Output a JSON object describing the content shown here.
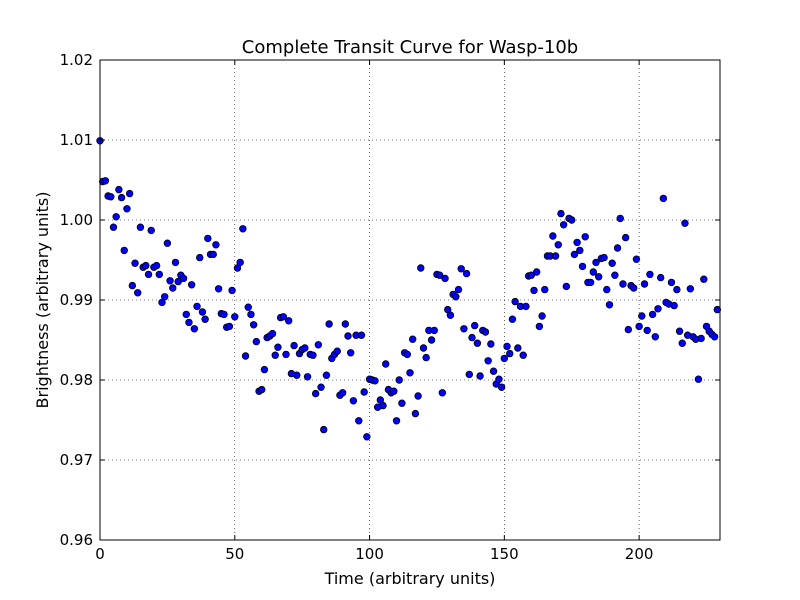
{
  "chart_data": {
    "type": "scatter",
    "title": "Complete Transit Curve for Wasp-10b",
    "xlabel": "Time (arbitrary units)",
    "ylabel": "Brightness (arbitrary units)",
    "xlim": [
      0,
      230
    ],
    "ylim": [
      0.96,
      1.02
    ],
    "xticks": [
      0,
      50,
      100,
      150,
      200
    ],
    "xtick_labels": [
      "0",
      "50",
      "100",
      "150",
      "200"
    ],
    "yticks": [
      0.96,
      0.97,
      0.98,
      0.99,
      1.0,
      1.01,
      1.02
    ],
    "ytick_labels": [
      "0.96",
      "0.97",
      "0.98",
      "0.99",
      "1.00",
      "1.01",
      "1.02"
    ],
    "grid": true,
    "marker_color": "#0000ff",
    "series": [
      {
        "x": [
          0,
          1,
          2,
          3,
          4,
          5,
          6,
          7,
          8,
          9,
          10,
          11,
          12,
          13,
          14,
          15,
          16,
          17,
          18,
          19,
          20,
          21,
          22,
          23,
          24,
          25,
          26,
          27,
          28,
          29,
          30,
          31,
          32,
          33,
          34,
          35,
          36,
          37,
          38,
          39,
          40,
          41,
          42,
          43,
          44,
          45,
          46,
          47,
          48,
          49,
          50,
          51,
          52,
          53,
          54,
          55,
          56,
          57,
          58,
          59,
          60,
          61,
          62,
          63,
          64,
          65,
          66,
          67,
          68,
          69,
          70,
          71,
          72,
          73,
          74,
          75,
          76,
          77,
          78,
          79,
          80,
          81,
          82,
          83,
          84,
          85,
          86,
          87,
          88,
          89,
          90,
          91,
          92,
          93,
          94,
          95,
          96,
          97,
          98,
          99,
          100,
          101,
          102,
          103,
          104,
          105,
          106,
          107,
          108,
          109,
          110,
          111,
          112,
          113,
          114,
          115,
          116,
          117,
          118,
          119,
          120,
          121,
          122,
          123,
          124,
          125,
          126,
          127,
          128,
          129,
          130,
          131,
          132,
          133,
          134,
          135,
          136,
          137,
          138,
          139,
          140,
          141,
          142,
          143,
          144,
          145,
          146,
          147,
          148,
          149,
          150,
          151,
          152,
          153,
          154,
          155,
          156,
          157,
          158,
          159,
          160,
          161,
          162,
          163,
          164,
          165,
          166,
          167,
          168,
          169,
          170,
          171,
          172,
          173,
          174,
          175,
          176,
          177,
          178,
          179,
          180,
          181,
          182,
          183,
          184,
          185,
          186,
          187,
          188,
          189,
          190,
          191,
          192,
          193,
          194,
          195,
          196,
          197,
          198,
          199,
          200,
          201,
          202,
          203,
          204,
          205,
          206,
          207,
          208,
          209,
          210,
          211,
          212,
          213,
          214,
          215,
          216,
          217,
          218,
          219,
          220,
          221,
          222,
          223,
          224,
          225,
          226,
          227,
          228,
          229
        ],
        "y": [
          1.0099,
          1.0048,
          1.0049,
          1.003,
          1.0029,
          0.9991,
          1.0004,
          1.0038,
          1.0028,
          0.9962,
          1.0014,
          1.0033,
          0.9918,
          0.9946,
          0.9909,
          0.9991,
          0.9941,
          0.9943,
          0.9932,
          0.9987,
          0.9941,
          0.9943,
          0.9932,
          0.9897,
          0.9904,
          0.9971,
          0.9924,
          0.9915,
          0.9947,
          0.9923,
          0.9931,
          0.9927,
          0.9882,
          0.9872,
          0.9919,
          0.9864,
          0.9892,
          0.9953,
          0.9885,
          0.9876,
          0.9977,
          0.9957,
          0.9957,
          0.9969,
          0.9914,
          0.9883,
          0.9882,
          0.9866,
          0.9867,
          0.9912,
          0.9879,
          0.994,
          0.9947,
          0.9989,
          0.983,
          0.9891,
          0.9882,
          0.9869,
          0.9848,
          0.9786,
          0.9788,
          0.9813,
          0.9853,
          0.9855,
          0.9858,
          0.9831,
          0.9841,
          0.9878,
          0.9879,
          0.9832,
          0.9874,
          0.9808,
          0.9843,
          0.9806,
          0.9833,
          0.9838,
          0.984,
          0.9804,
          0.9832,
          0.9831,
          0.9783,
          0.9844,
          0.9791,
          0.9738,
          0.9806,
          0.987,
          0.9827,
          0.9832,
          0.9836,
          0.9781,
          0.9784,
          0.987,
          0.9855,
          0.9834,
          0.9774,
          0.9856,
          0.9749,
          0.9856,
          0.9785,
          0.9729,
          0.9801,
          0.98,
          0.9799,
          0.9766,
          0.9775,
          0.9768,
          0.982,
          0.9788,
          0.9784,
          0.9786,
          0.9749,
          0.98,
          0.9771,
          0.9834,
          0.9832,
          0.9809,
          0.9851,
          0.9758,
          0.978,
          0.994,
          0.984,
          0.9828,
          0.9862,
          0.985,
          0.9862,
          0.9932,
          0.9931,
          0.9784,
          0.9927,
          0.9888,
          0.9881,
          0.9907,
          0.9904,
          0.9913,
          0.9939,
          0.9864,
          0.9933,
          0.9807,
          0.9853,
          0.9868,
          0.9846,
          0.9805,
          0.9862,
          0.986,
          0.9824,
          0.9845,
          0.9811,
          0.9795,
          0.9801,
          0.9791,
          0.9827,
          0.9842,
          0.9833,
          0.9876,
          0.9898,
          0.984,
          0.9892,
          0.9831,
          0.9892,
          0.993,
          0.9931,
          0.9912,
          0.9935,
          0.9867,
          0.988,
          0.9913,
          0.9955,
          0.9955,
          0.998,
          0.9955,
          0.9969,
          1.0008,
          0.9994,
          0.9917,
          1.0002,
          1.0,
          0.9957,
          0.9972,
          0.9962,
          0.9942,
          0.9979,
          0.9922,
          0.9922,
          0.9935,
          0.9947,
          0.9929,
          0.9952,
          0.9953,
          0.9913,
          0.9894,
          0.9946,
          0.9931,
          0.9965,
          1.0002,
          0.992,
          0.9978,
          0.9863,
          0.9918,
          0.9915,
          0.9951,
          0.9867,
          0.988,
          0.992,
          0.9862,
          0.9932,
          0.9882,
          0.9854,
          0.9889,
          0.9928,
          1.0027,
          0.9897,
          0.9895,
          0.9922,
          0.9893,
          0.9913,
          0.9861,
          0.9846,
          0.9996,
          0.9856,
          0.9914,
          0.9854,
          0.9851,
          0.9801,
          0.9852,
          0.9926,
          0.9867,
          0.9861,
          0.9857,
          0.9854,
          0.9888
        ]
      }
    ]
  }
}
